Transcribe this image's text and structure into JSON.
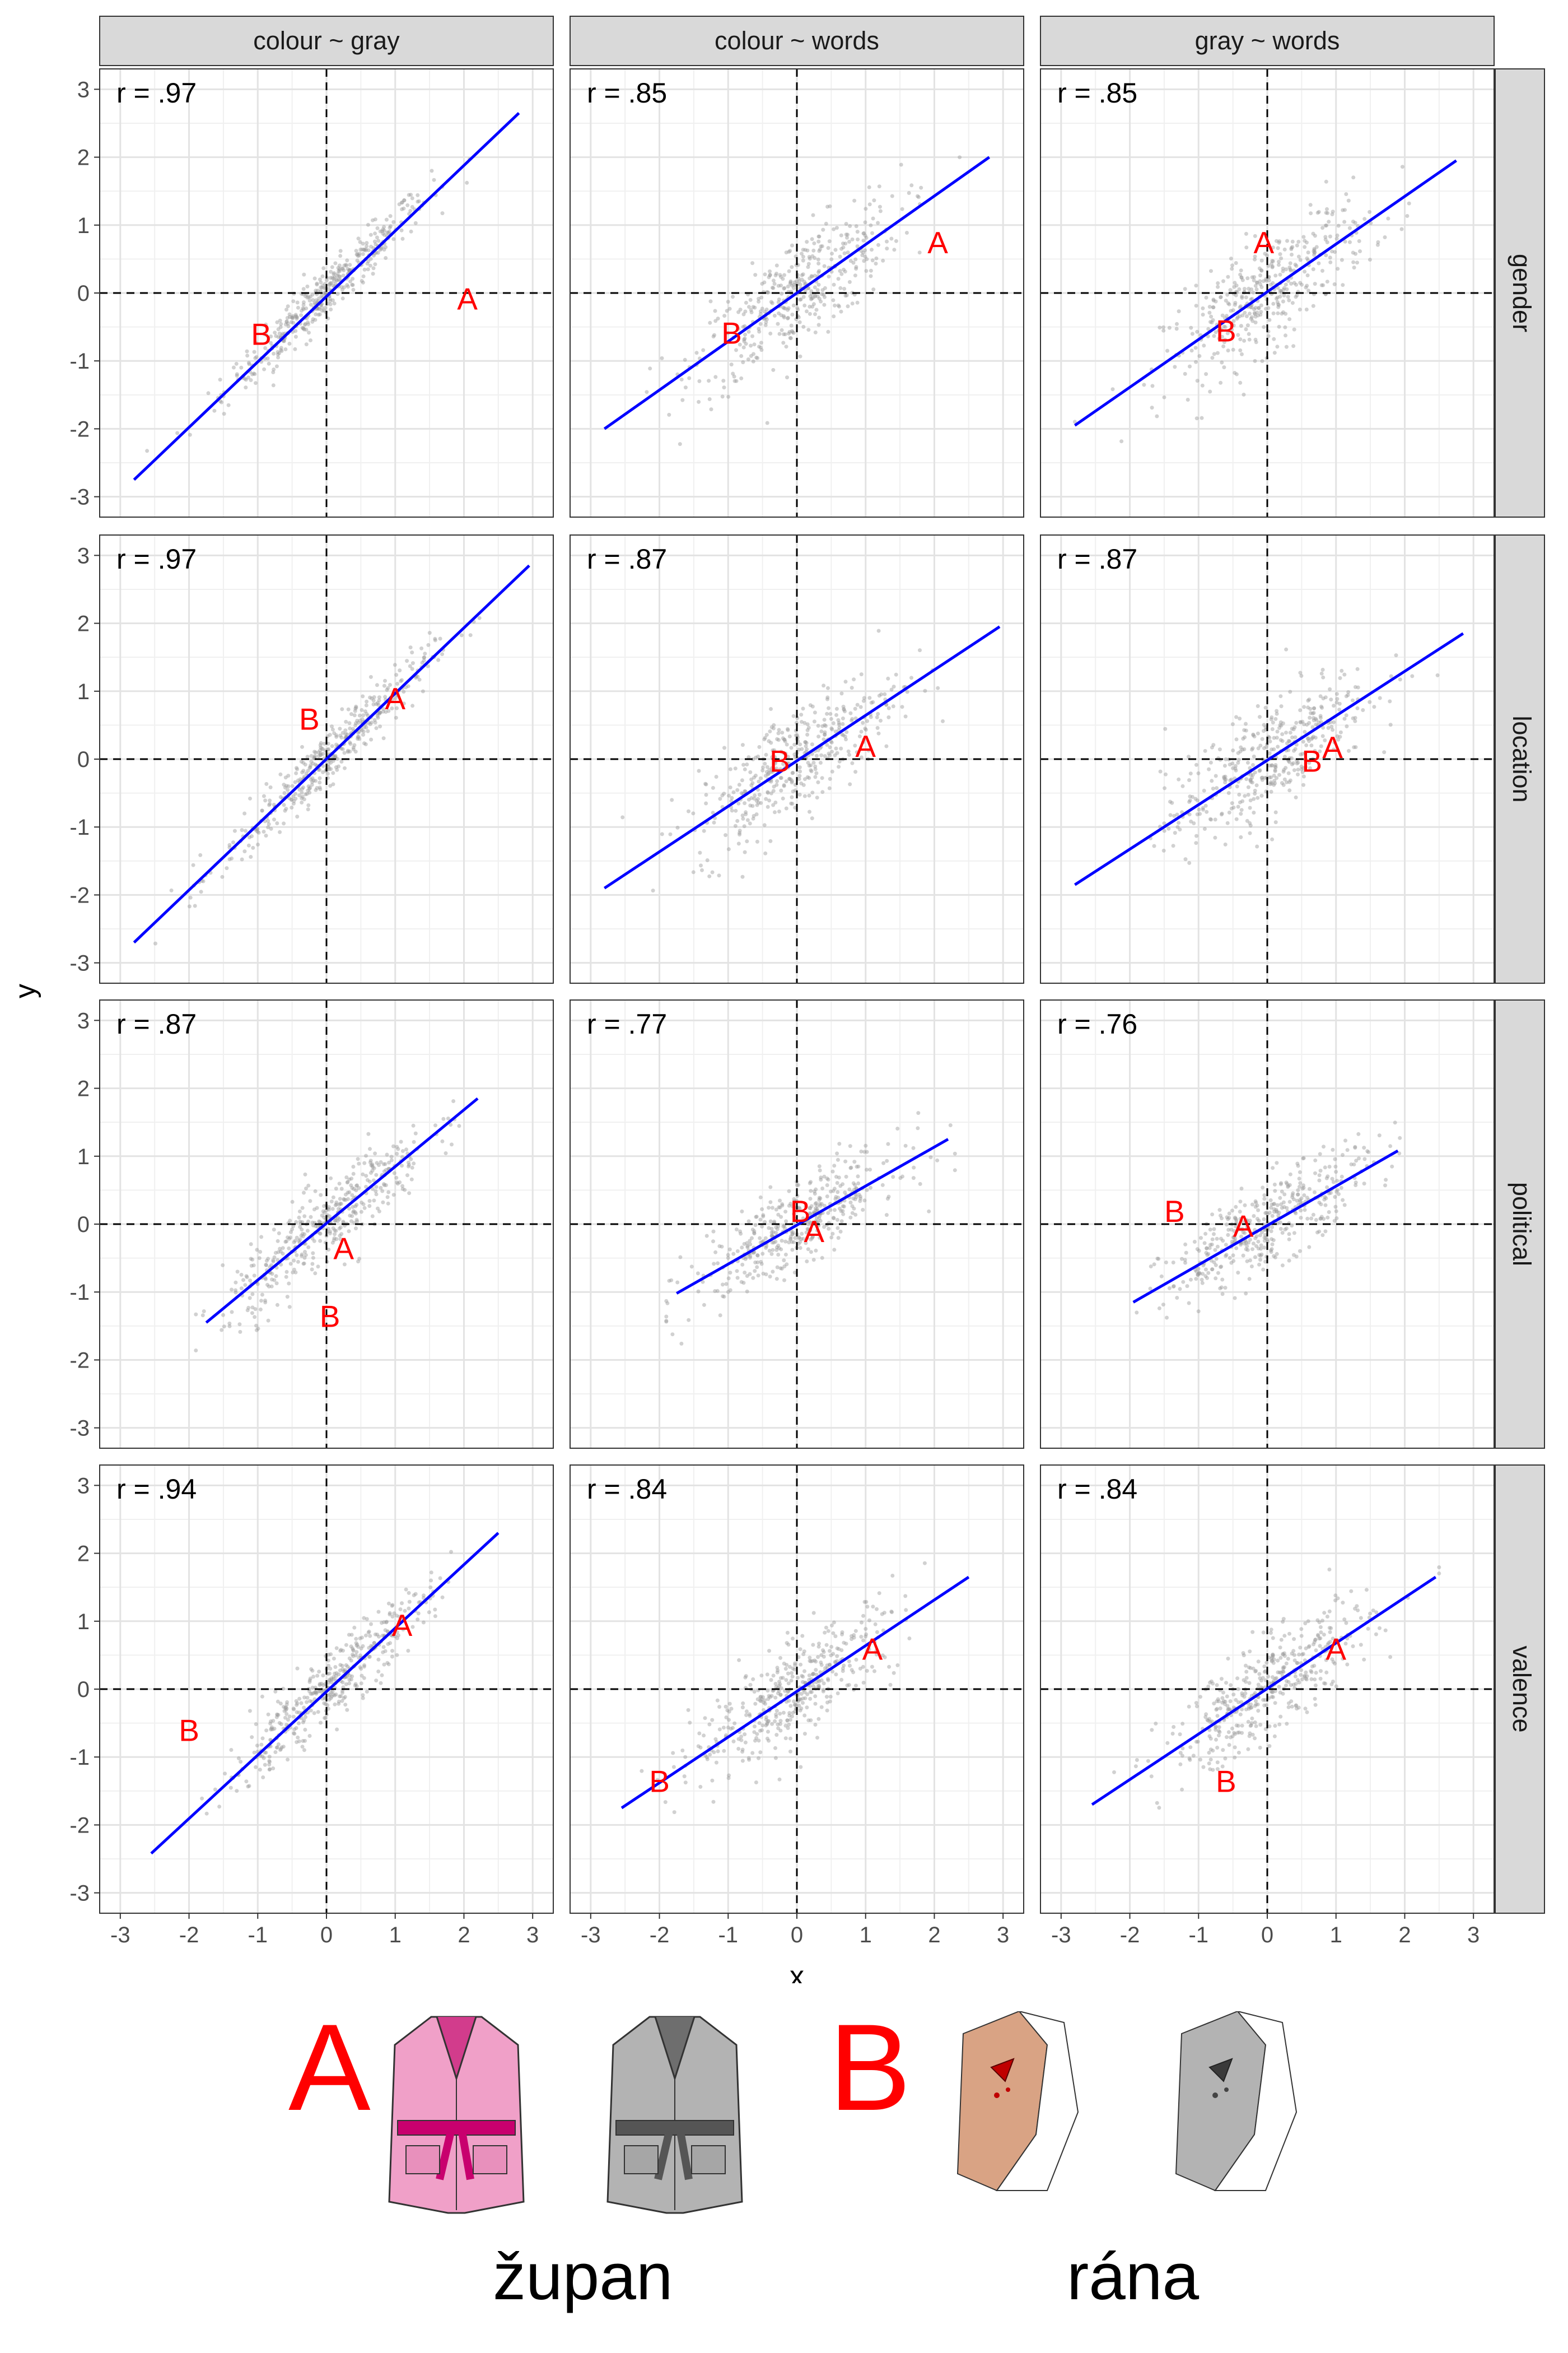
{
  "chart_data": {
    "type": "scatter",
    "layout": "4 rows x 3 columns facet grid",
    "xlabel": "x",
    "ylabel": "y",
    "xlim": [
      -3.3,
      3.3
    ],
    "ylim": [
      -3.3,
      3.3
    ],
    "x_ticks": [
      "-3",
      "-2",
      "-1",
      "0",
      "1",
      "2",
      "3"
    ],
    "y_ticks": [
      "-3",
      "-2",
      "-1",
      "0",
      "1",
      "2",
      "3"
    ],
    "grid": true,
    "reference_lines": {
      "x": 0,
      "y": 0,
      "style": "dashed"
    },
    "fit_line_color": "#0000ff",
    "point_color": "#999999",
    "label_color": "#ff0000",
    "columns": [
      "colour ~ gray",
      "colour ~ words",
      "gray ~ words"
    ],
    "rows": [
      "gender",
      "location",
      "political",
      "valence"
    ],
    "panels": [
      {
        "row": "gender",
        "col": "colour ~ gray",
        "r_label": "r = .97",
        "fit": {
          "x1": -2.8,
          "y1": -2.75,
          "x2": 2.8,
          "y2": 2.65
        },
        "spread": {
          "x": [
            -2.7,
            2.6
          ],
          "slope": 0.97,
          "noise": 0.18
        },
        "A": {
          "x": 2.05,
          "y": -0.08
        },
        "B": {
          "x": -0.95,
          "y": -0.6
        }
      },
      {
        "row": "gender",
        "col": "colour ~ words",
        "r_label": "r = .85",
        "fit": {
          "x1": -2.8,
          "y1": -2.0,
          "x2": 2.8,
          "y2": 2.0
        },
        "spread": {
          "x": [
            -2.8,
            2.8
          ],
          "slope": 0.71,
          "noise": 0.4
        },
        "A": {
          "x": 2.05,
          "y": 0.75
        },
        "B": {
          "x": -0.95,
          "y": -0.58
        }
      },
      {
        "row": "gender",
        "col": "gray ~ words",
        "r_label": "r = .85",
        "fit": {
          "x1": -2.8,
          "y1": -1.95,
          "x2": 2.75,
          "y2": 1.95
        },
        "spread": {
          "x": [
            -2.8,
            2.8
          ],
          "slope": 0.7,
          "noise": 0.4
        },
        "A": {
          "x": -0.05,
          "y": 0.75
        },
        "B": {
          "x": -0.6,
          "y": -0.55
        }
      },
      {
        "row": "location",
        "col": "colour ~ gray",
        "r_label": "r = .97",
        "fit": {
          "x1": -2.8,
          "y1": -2.7,
          "x2": 2.95,
          "y2": 2.85
        },
        "spread": {
          "x": [
            -2.7,
            2.8
          ],
          "slope": 0.97,
          "noise": 0.2
        },
        "A": {
          "x": 1.0,
          "y": 0.9
        },
        "B": {
          "x": -0.25,
          "y": 0.6
        }
      },
      {
        "row": "location",
        "col": "colour ~ words",
        "r_label": "r = .87",
        "fit": {
          "x1": -2.8,
          "y1": -1.9,
          "x2": 2.95,
          "y2": 1.95
        },
        "spread": {
          "x": [
            -2.8,
            2.9
          ],
          "slope": 0.67,
          "noise": 0.4
        },
        "A": {
          "x": 1.0,
          "y": 0.2
        },
        "B": {
          "x": -0.25,
          "y": -0.02
        }
      },
      {
        "row": "location",
        "col": "gray ~ words",
        "r_label": "r = .87",
        "fit": {
          "x1": -2.8,
          "y1": -1.85,
          "x2": 2.85,
          "y2": 1.85
        },
        "spread": {
          "x": [
            -2.8,
            2.9
          ],
          "slope": 0.66,
          "noise": 0.4
        },
        "A": {
          "x": 0.95,
          "y": 0.18
        },
        "B": {
          "x": 0.65,
          "y": -0.02
        }
      },
      {
        "row": "political",
        "col": "colour ~ gray",
        "r_label": "r = .87",
        "fit": {
          "x1": -1.75,
          "y1": -1.45,
          "x2": 2.2,
          "y2": 1.85
        },
        "spread": {
          "x": [
            -1.9,
            2.3
          ],
          "slope": 0.84,
          "noise": 0.3
        },
        "A": {
          "x": 0.25,
          "y": -0.35
        },
        "B": {
          "x": 0.05,
          "y": -1.35
        }
      },
      {
        "row": "political",
        "col": "colour ~ words",
        "r_label": "r = .77",
        "fit": {
          "x1": -1.75,
          "y1": -1.02,
          "x2": 2.2,
          "y2": 1.25
        },
        "spread": {
          "x": [
            -1.9,
            2.3
          ],
          "slope": 0.57,
          "noise": 0.3
        },
        "A": {
          "x": 0.25,
          "y": -0.1
        },
        "B": {
          "x": 0.05,
          "y": 0.2
        }
      },
      {
        "row": "political",
        "col": "gray ~ words",
        "r_label": "r = .76",
        "fit": {
          "x1": -1.95,
          "y1": -1.15,
          "x2": 1.9,
          "y2": 1.08
        },
        "spread": {
          "x": [
            -1.9,
            2.1
          ],
          "slope": 0.58,
          "noise": 0.3
        },
        "A": {
          "x": -0.35,
          "y": -0.02
        },
        "B": {
          "x": -1.35,
          "y": 0.2
        }
      },
      {
        "row": "valence",
        "col": "colour ~ gray",
        "r_label": "r = .94",
        "fit": {
          "x1": -2.55,
          "y1": -2.42,
          "x2": 2.5,
          "y2": 2.3
        },
        "spread": {
          "x": [
            -2.5,
            2.5
          ],
          "slope": 0.93,
          "noise": 0.25
        },
        "A": {
          "x": 1.1,
          "y": 0.95
        },
        "B": {
          "x": -2.0,
          "y": -0.6
        }
      },
      {
        "row": "valence",
        "col": "colour ~ words",
        "r_label": "r = .84",
        "fit": {
          "x1": -2.55,
          "y1": -1.75,
          "x2": 2.5,
          "y2": 1.65
        },
        "spread": {
          "x": [
            -2.6,
            2.6
          ],
          "slope": 0.67,
          "noise": 0.35
        },
        "A": {
          "x": 1.1,
          "y": 0.6
        },
        "B": {
          "x": -2.0,
          "y": -1.35
        }
      },
      {
        "row": "valence",
        "col": "gray ~ words",
        "r_label": "r = .84",
        "fit": {
          "x1": -2.55,
          "y1": -1.7,
          "x2": 2.45,
          "y2": 1.65
        },
        "spread": {
          "x": [
            -2.6,
            2.5
          ],
          "slope": 0.67,
          "noise": 0.35
        },
        "A": {
          "x": 1.0,
          "y": 0.6
        },
        "B": {
          "x": -0.6,
          "y": -1.35
        }
      }
    ]
  },
  "legend": {
    "a_label": "A",
    "a_word": "župan",
    "b_label": "B",
    "b_word": "rána",
    "colors": {
      "robe_colour": "#f0a0c8",
      "robe_dark": "#c8006e",
      "gray": "#b3b3b3",
      "skin": "#d9a384",
      "blood": "#c00000"
    }
  }
}
